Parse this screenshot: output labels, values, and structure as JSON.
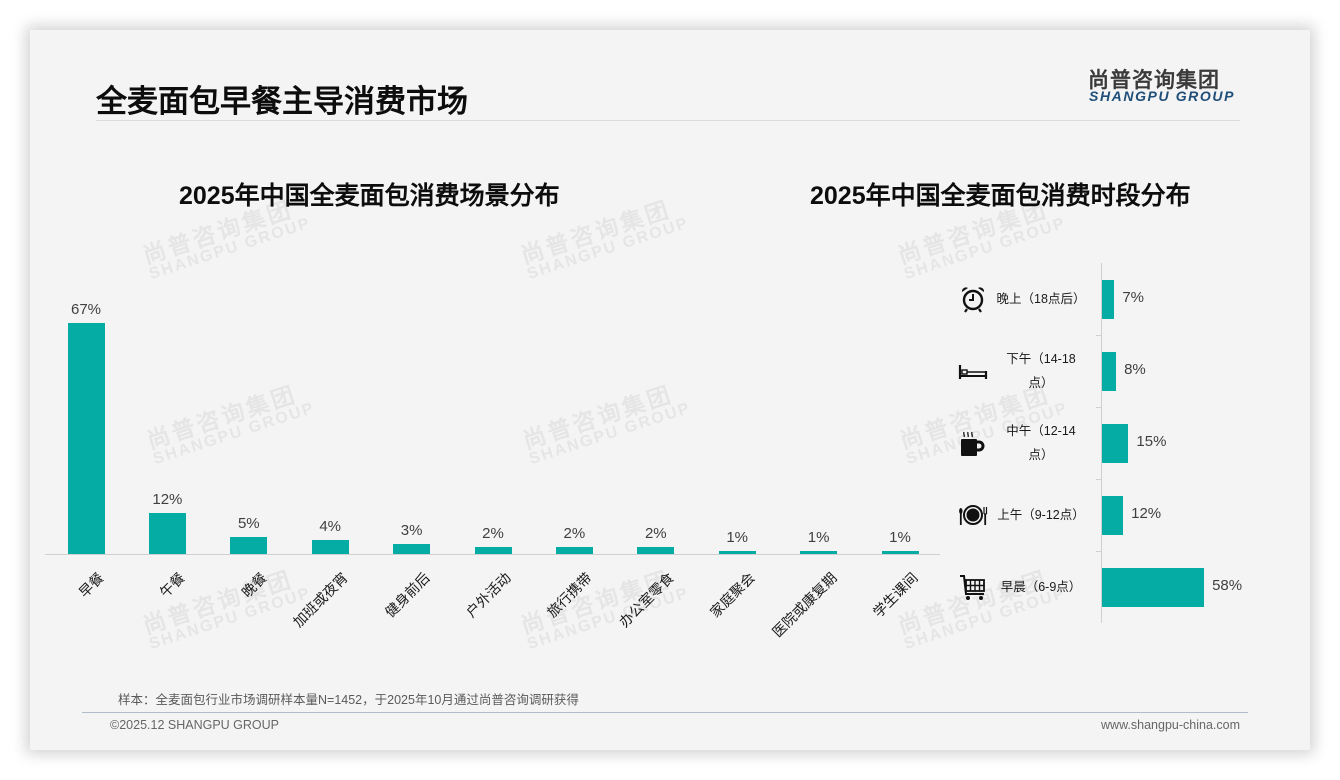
{
  "page": {
    "title": "全麦面包早餐主导消费市场"
  },
  "logo": {
    "cn": "尚普咨询集团",
    "en": "SHANGPU GROUP"
  },
  "watermark": {
    "cn": "尚普咨询集团",
    "en": "SHANGPU GROUP"
  },
  "colors": {
    "bar": "#05aca3",
    "logo_en": "#1f4e79"
  },
  "chart_data": [
    {
      "type": "bar",
      "title": "2025年中国全麦面包消费场景分布",
      "categories": [
        "早餐",
        "午餐",
        "晚餐",
        "加班或夜宵",
        "健身前后",
        "户外活动",
        "旅行携带",
        "办公室零食",
        "家庭聚会",
        "医院或康复期",
        "学生课间"
      ],
      "values": [
        67,
        12,
        5,
        4,
        3,
        2,
        2,
        2,
        1,
        1,
        1
      ],
      "labels": [
        "67%",
        "12%",
        "5%",
        "4%",
        "3%",
        "2%",
        "2%",
        "2%",
        "1%",
        "1%",
        "1%"
      ],
      "unit": "%",
      "xlabel": "",
      "ylabel": "",
      "grid": false,
      "legend": null
    },
    {
      "type": "bar",
      "orientation": "horizontal",
      "title": "2025年中国全麦面包消费时段分布",
      "categories": [
        "晚上（18点后）",
        "下午（14-18点）",
        "中午（12-14点）",
        "上午（9-12点）",
        "早晨（6-9点）"
      ],
      "display_labels": [
        [
          "晚上（18点后）"
        ],
        [
          "下午（14-18",
          "点）"
        ],
        [
          "中午（12-14",
          "点）"
        ],
        [
          "上午（9-12点）"
        ],
        [
          "早晨（6-9点）"
        ]
      ],
      "icons": [
        "alarm-clock-icon",
        "bed-icon",
        "hot-coffee-mug-icon",
        "plate-cutlery-icon",
        "shopping-cart-icon"
      ],
      "values": [
        7,
        8,
        15,
        12,
        58
      ],
      "labels": [
        "7%",
        "8%",
        "15%",
        "12%",
        "58%"
      ],
      "unit": "%",
      "grid": false,
      "legend": null
    }
  ],
  "footer": {
    "note": "样本：全麦面包行业市场调研样本量N=1452，于2025年10月通过尚普咨询调研获得",
    "copyright": "©2025.12 SHANGPU GROUP",
    "url": "www.shangpu-china.com"
  }
}
